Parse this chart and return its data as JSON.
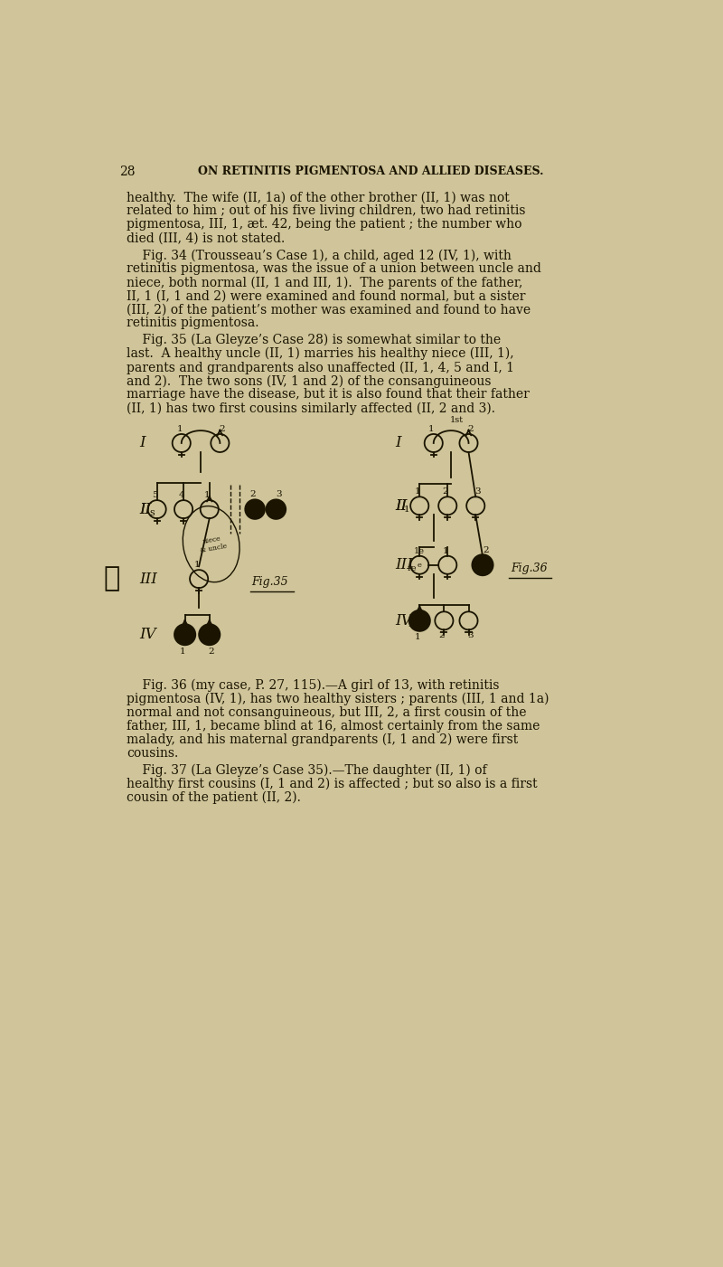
{
  "bg_color": "#cfc49a",
  "text_color": "#1a1400",
  "page_number": "28",
  "header": "ON RETINITIS PIGMENTOSA AND ALLIED DISEASES.",
  "para1_lines": [
    "healthy.  The wife (II, 1a) of the other brother (II, 1) was not",
    "related to him ; out of his five living children, two had retinitis",
    "pigmentosa, III, 1, æt. 42, being the patient ; the number who",
    "died (III, 4) is not stated."
  ],
  "para2_lines": [
    "    Fig. 34 (Trousseau’s Case 1), a child, aged 12 (IV, 1), with",
    "retinitis pigmentosa, was the issue of a union between uncle and",
    "niece, both normal (II, 1 and III, 1).  The parents of the father,",
    "II, 1 (I, 1 and 2) were examined and found normal, but a sister",
    "(III, 2) of the patient’s mother was examined and found to have",
    "retinitis pigmentosa."
  ],
  "para3_lines": [
    "    Fig. 35 (La Gleyze’s Case 28) is somewhat similar to the",
    "last.  A healthy uncle (II, 1) marries his healthy niece (III, 1),",
    "parents and grandparents also unaffected (II, 1, 4, 5 and I, 1",
    "and 2).  The two sons (IV, 1 and 2) of the consanguineous",
    "marriage have the disease, but it is also found that their father",
    "(II, 1) has two first cousins similarly affected (II, 2 and 3)."
  ],
  "para4_lines": [
    "    Fig. 36 (my case, P. 27, 115).—A girl of 13, with retinitis",
    "pigmentosa (IV, 1), has two healthy sisters ; parents (III, 1 and 1a)",
    "normal and not consanguineous, but III, 2, a first cousin of the",
    "father, III, 1, became blind at 16, almost certainly from the same",
    "malady, and his maternal grandparents (I, 1 and 2) were first",
    "cousins."
  ],
  "para5_lines": [
    "    Fig. 37 (La Gleyze’s Case 35).—The daughter (II, 1) of",
    "healthy first cousins (I, 1 and 2) is affected ; but so also is a first",
    "cousin of the patient (II, 2)."
  ]
}
